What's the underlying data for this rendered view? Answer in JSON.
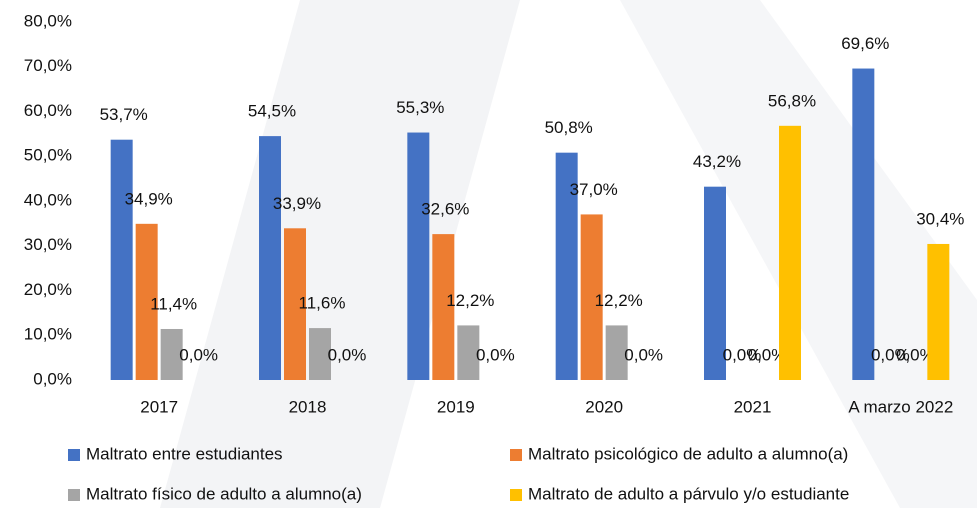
{
  "chart_data": {
    "type": "bar",
    "categories": [
      "2017",
      "2018",
      "2019",
      "2020",
      "2021",
      "A marzo 2022"
    ],
    "series": [
      {
        "name": "Maltrato entre estudiantes",
        "color": "#4472c4",
        "values": [
          53.7,
          54.5,
          55.3,
          50.8,
          43.2,
          69.6
        ],
        "value_labels": [
          "53,7%",
          "54,5%",
          "55,3%",
          "50,8%",
          "43,2%",
          "69,6%"
        ]
      },
      {
        "name": "Maltrato psicológico de adulto a alumno(a)",
        "color": "#ed7d31",
        "values": [
          34.9,
          33.9,
          32.6,
          37.0,
          0.0,
          0.0
        ],
        "value_labels": [
          "34,9%",
          "33,9%",
          "32,6%",
          "37,0%",
          "0,0%",
          "0,0%"
        ]
      },
      {
        "name": "Maltrato físico de adulto a alumno(a)",
        "color": "#a5a5a5",
        "values": [
          11.4,
          11.6,
          12.2,
          12.2,
          0.0,
          0.0
        ],
        "value_labels": [
          "11,4%",
          "11,6%",
          "12,2%",
          "12,2%",
          "0,0%",
          "0,0%"
        ]
      },
      {
        "name": "Maltrato de adulto a párvulo y/o estudiante",
        "color": "#ffc000",
        "values": [
          0.0,
          0.0,
          0.0,
          0.0,
          56.8,
          30.4
        ],
        "value_labels": [
          "0,0%",
          "0,0%",
          "0,0%",
          "0,0%",
          "56,8%",
          "30,4%"
        ]
      }
    ],
    "ylim": [
      0,
      80
    ],
    "yticks": [
      {
        "value": 0,
        "label": "0,0%"
      },
      {
        "value": 10,
        "label": "10,0%"
      },
      {
        "value": 20,
        "label": "20,0%"
      },
      {
        "value": 30,
        "label": "30,0%"
      },
      {
        "value": 40,
        "label": "40,0%"
      },
      {
        "value": 50,
        "label": "50,0%"
      },
      {
        "value": 60,
        "label": "60,0%"
      },
      {
        "value": 70,
        "label": "70,0%"
      },
      {
        "value": 80,
        "label": "80,0%"
      }
    ],
    "grid": false,
    "legend": "bottom"
  }
}
